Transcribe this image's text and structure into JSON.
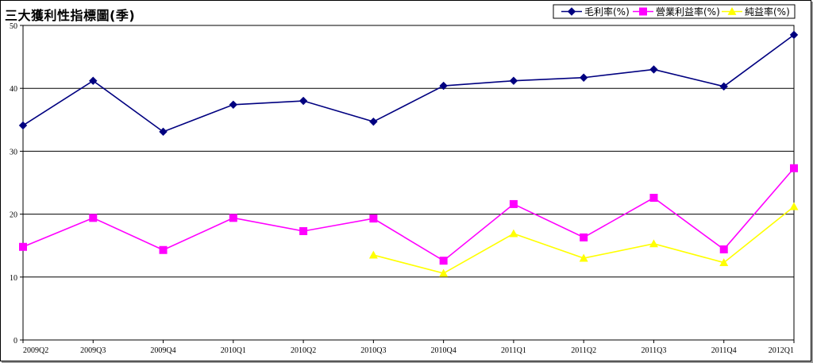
{
  "chart_data": {
    "type": "line",
    "title": "三大獲利性指標圖(季)",
    "xlabel": "",
    "ylabel": "",
    "ylim": [
      0,
      50
    ],
    "yticks": [
      0,
      10,
      20,
      30,
      40,
      50
    ],
    "grid": true,
    "legend_position": "top-right",
    "categories": [
      "2009Q2",
      "2009Q3",
      "2009Q4",
      "2010Q1",
      "2010Q2",
      "2010Q3",
      "2010Q4",
      "2011Q1",
      "2011Q2",
      "2011Q3",
      "2011Q4",
      "2012Q1"
    ],
    "series": [
      {
        "name": "毛利率(%)",
        "color": "#000080",
        "marker": "diamond",
        "values": [
          34.1,
          41.2,
          33.1,
          37.4,
          38.0,
          34.7,
          40.4,
          41.2,
          41.7,
          43.0,
          40.3,
          48.5
        ]
      },
      {
        "name": "營業利益率(%)",
        "color": "#FF00FF",
        "marker": "square",
        "values": [
          14.8,
          19.4,
          14.3,
          19.4,
          17.3,
          19.3,
          12.6,
          21.6,
          16.3,
          22.6,
          14.4,
          27.3
        ]
      },
      {
        "name": "純益率(%)",
        "color": "#FFFF00",
        "marker": "triangle",
        "values": [
          null,
          null,
          null,
          null,
          null,
          13.5,
          10.6,
          16.9,
          13.0,
          15.3,
          12.3,
          21.2
        ]
      }
    ]
  }
}
